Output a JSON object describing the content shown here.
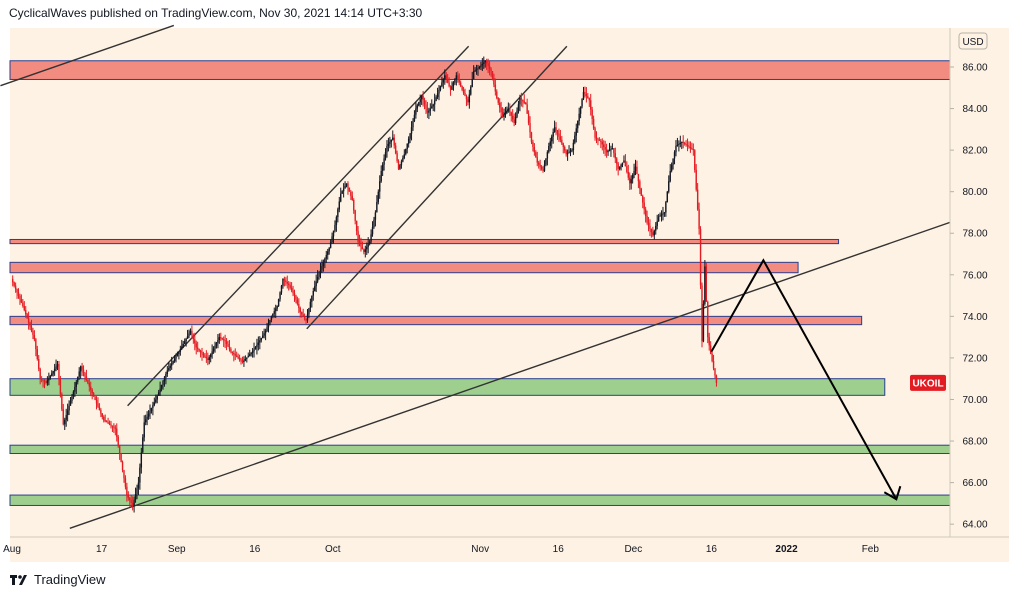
{
  "header": {
    "publisher": "CyclicalWaves published on TradingView.com, Nov 30, 2021 14:14 UTC+3:30"
  },
  "footer": {
    "brand": "TradingView",
    "logo_icon": "tradingview-logo-icon"
  },
  "colors": {
    "background": "#fdf2e3",
    "resistance_zone": "#f28b80",
    "support_zone": "#9fcf8f",
    "zone_border": "#2a3f8f",
    "candle_up": "#131722",
    "candle_down": "#e31b23",
    "trendline": "#333333",
    "arrow": "#000000",
    "badge": "#e31b23"
  },
  "chart_data": {
    "type": "candlestick",
    "symbol": "UKOIL",
    "currency": "USD",
    "last_price_badge": "UKOIL",
    "x_ticks": [
      "Aug",
      "17",
      "Sep",
      "16",
      "Oct",
      "Nov",
      "16",
      "Dec",
      "16",
      "2022",
      "Feb"
    ],
    "y_ticks": [
      "86.00",
      "84.00",
      "82.00",
      "80.00",
      "78.00",
      "76.00",
      "74.00",
      "72.00",
      "70.00",
      "68.00",
      "66.00",
      "64.00"
    ],
    "ylim": [
      63.2,
      87.6
    ],
    "price_path": [
      [
        0,
        75.8
      ],
      [
        2,
        74.5
      ],
      [
        4,
        72.9
      ],
      [
        5,
        71.0
      ],
      [
        6,
        70.8
      ],
      [
        8,
        71.7
      ],
      [
        9,
        68.8
      ],
      [
        11,
        70.6
      ],
      [
        12,
        71.6
      ],
      [
        14,
        70.3
      ],
      [
        16,
        69.0
      ],
      [
        18,
        68.6
      ],
      [
        20,
        65.4
      ],
      [
        21,
        64.9
      ],
      [
        22,
        66.0
      ],
      [
        23,
        68.9
      ],
      [
        25,
        70.0
      ],
      [
        27,
        71.4
      ],
      [
        29,
        72.3
      ],
      [
        31,
        73.3
      ],
      [
        32,
        72.5
      ],
      [
        34,
        71.9
      ],
      [
        36,
        73.0
      ],
      [
        37,
        72.8
      ],
      [
        38,
        72.3
      ],
      [
        40,
        71.8
      ],
      [
        42,
        72.4
      ],
      [
        44,
        73.3
      ],
      [
        45,
        74.0
      ],
      [
        46,
        74.5
      ],
      [
        47,
        75.8
      ],
      [
        48,
        75.5
      ],
      [
        49,
        75.0
      ],
      [
        50,
        74.2
      ],
      [
        51,
        73.8
      ],
      [
        52,
        75.0
      ],
      [
        53,
        75.9
      ],
      [
        55,
        77.3
      ],
      [
        56,
        78.4
      ],
      [
        57,
        79.9
      ],
      [
        58,
        80.4
      ],
      [
        59,
        79.6
      ],
      [
        60,
        77.6
      ],
      [
        61,
        77.1
      ],
      [
        62,
        77.6
      ],
      [
        63,
        79.0
      ],
      [
        64,
        81.0
      ],
      [
        65,
        82.2
      ],
      [
        66,
        82.6
      ],
      [
        67,
        81.1
      ],
      [
        68,
        81.8
      ],
      [
        69,
        82.8
      ],
      [
        70,
        84.0
      ],
      [
        71,
        84.6
      ],
      [
        72,
        83.8
      ],
      [
        73,
        84.2
      ],
      [
        74,
        84.9
      ],
      [
        75,
        85.6
      ],
      [
        76,
        84.9
      ],
      [
        77,
        85.6
      ],
      [
        78,
        84.9
      ],
      [
        79,
        84.3
      ],
      [
        80,
        85.8
      ],
      [
        81,
        86.0
      ],
      [
        82,
        86.3
      ],
      [
        83,
        85.8
      ],
      [
        84,
        84.5
      ],
      [
        85,
        83.6
      ],
      [
        86,
        84.0
      ],
      [
        87,
        83.3
      ],
      [
        88,
        84.5
      ],
      [
        89,
        84.2
      ],
      [
        90,
        82.4
      ],
      [
        91,
        81.4
      ],
      [
        92,
        81.0
      ],
      [
        93,
        82.2
      ],
      [
        94,
        83.1
      ],
      [
        95,
        82.5
      ],
      [
        96,
        81.8
      ],
      [
        97,
        82.0
      ],
      [
        98,
        83.4
      ],
      [
        99,
        84.8
      ],
      [
        100,
        84.4
      ],
      [
        101,
        82.6
      ],
      [
        102,
        82.4
      ],
      [
        103,
        81.9
      ],
      [
        104,
        82.1
      ],
      [
        105,
        81.1
      ],
      [
        106,
        81.5
      ],
      [
        107,
        80.4
      ],
      [
        108,
        81.2
      ],
      [
        109,
        79.8
      ],
      [
        110,
        78.5
      ],
      [
        111,
        77.9
      ],
      [
        112,
        78.8
      ],
      [
        113,
        79.0
      ],
      [
        114,
        81.0
      ],
      [
        115,
        82.2
      ],
      [
        116,
        82.4
      ],
      [
        117,
        82.2
      ],
      [
        118,
        82.0
      ],
      [
        119,
        78.2
      ],
      [
        119.5,
        72.8
      ],
      [
        120,
        76.4
      ],
      [
        120.5,
        73.0
      ],
      [
        121,
        72.2
      ],
      [
        122,
        70.8
      ]
    ],
    "zones": [
      {
        "kind": "resistance",
        "x0": -2,
        "x1": 200,
        "y0": 85.4,
        "y1": 86.3
      },
      {
        "kind": "resistance",
        "x0": -2,
        "x1": 143,
        "y0": 77.5,
        "y1": 77.7
      },
      {
        "kind": "resistance",
        "x0": -2,
        "x1": 136,
        "y0": 76.1,
        "y1": 76.6
      },
      {
        "kind": "resistance",
        "x0": -2,
        "x1": 147,
        "y0": 73.6,
        "y1": 74.0
      },
      {
        "kind": "support",
        "x0": -2,
        "x1": 151,
        "y0": 70.2,
        "y1": 71.0
      },
      {
        "kind": "support",
        "x0": -2,
        "x1": 180,
        "y0": 67.4,
        "y1": 67.8
      },
      {
        "kind": "support",
        "x0": -2,
        "x1": 174,
        "y0": 64.9,
        "y1": 65.4
      }
    ],
    "trendlines": [
      {
        "x0": -2,
        "y0": 85.1,
        "x1": 28,
        "y1": 88.0
      },
      {
        "x0": 20,
        "y0": 69.7,
        "x1": 79,
        "y1": 87.0
      },
      {
        "x0": 51,
        "y0": 73.4,
        "x1": 96,
        "y1": 87.0
      },
      {
        "x0": 10,
        "y0": 63.8,
        "x1": 191,
        "y1": 81.3
      }
    ],
    "projection": [
      [
        121,
        72.3
      ],
      [
        130,
        76.7
      ],
      [
        153,
        65.2
      ]
    ],
    "arrow_head": [
      153,
      65.2
    ],
    "last_price": 70.8,
    "grid": false,
    "legend": "none"
  }
}
